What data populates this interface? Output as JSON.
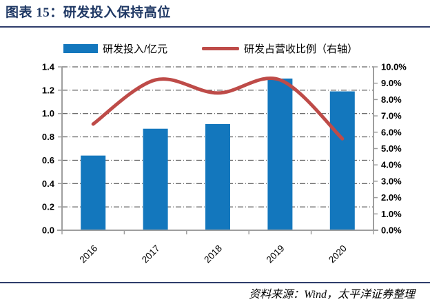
{
  "header": {
    "title": "图表 15：研发投入保持高位"
  },
  "footer": {
    "source": "资料来源：Wind，太平洋证券整理"
  },
  "colors": {
    "accent_navy": "#1F3864",
    "bar_blue": "#1377BD",
    "line_red": "#BE4B48",
    "axis_gray": "#9E9E9E",
    "gridline": "#3F3F3F"
  },
  "chart_data": {
    "type": "bar+line",
    "title": "研发投入保持高位",
    "categories": [
      "2016",
      "2017",
      "2018",
      "2019",
      "2020"
    ],
    "series": [
      {
        "name": "研发投入/亿元",
        "type": "bar",
        "axis": "left",
        "color": "#1377BD",
        "values": [
          0.64,
          0.87,
          0.91,
          1.3,
          1.19
        ]
      },
      {
        "name": "研发占营收比例（右轴）",
        "type": "line",
        "axis": "right",
        "color": "#BE4B48",
        "unit": "%",
        "values": [
          6.5,
          9.2,
          8.4,
          9.2,
          5.6
        ]
      }
    ],
    "left_axis": {
      "min": 0,
      "max": 1.4,
      "step": 0.2,
      "tick_labels": [
        "0.0",
        "0.2",
        "0.4",
        "0.6",
        "0.8",
        "1.0",
        "1.2",
        "1.4"
      ]
    },
    "right_axis": {
      "min": 0,
      "max": 10,
      "step": 1,
      "tick_labels": [
        "0.0%",
        "1.0%",
        "2.0%",
        "3.0%",
        "4.0%",
        "5.0%",
        "6.0%",
        "7.0%",
        "8.0%",
        "9.0%",
        "10.0%"
      ]
    },
    "grid": {
      "horizontal": true,
      "style": "dash-dot"
    },
    "legend_position": "top"
  }
}
